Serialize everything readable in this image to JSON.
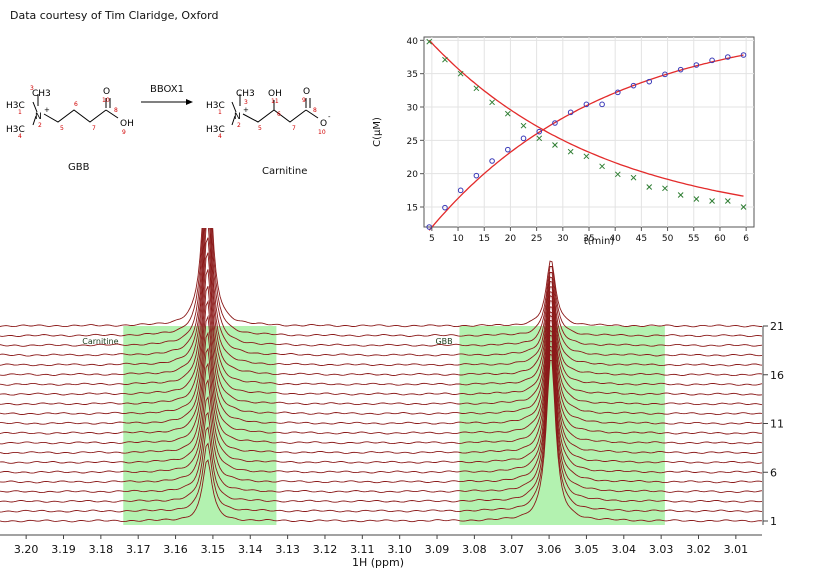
{
  "credit": "Data courtesy of Tim Claridge, Oxford",
  "reaction": {
    "arrow_label": "BBOX1",
    "reactant": {
      "name": "GBB",
      "h3c_top": "H3C",
      "h3c_bottom": "H3C",
      "ch3": "CH3",
      "n": "N",
      "n_charge": "+",
      "o": "O",
      "oh": "OH",
      "numbers": [
        "1",
        "2",
        "3",
        "4",
        "5",
        "6",
        "7",
        "8",
        "9",
        "10"
      ]
    },
    "product": {
      "name": "Carnitine",
      "h3c_top": "H3C",
      "h3c_bottom": "H3C",
      "ch3": "CH3",
      "n": "N",
      "n_charge": "+",
      "oh": "OH",
      "o": "O",
      "o_minus": "O",
      "o_charge": "-",
      "numbers": [
        "1",
        "2",
        "3",
        "4",
        "5",
        "6",
        "7",
        "8",
        "9",
        "10",
        "11"
      ]
    }
  },
  "chart_data": [
    {
      "type": "scatter",
      "title": "",
      "xlabel": "t(min)",
      "ylabel": "C(μM)",
      "xticks": [
        "5",
        "10",
        "15",
        "20",
        "25",
        "30",
        "35",
        "40",
        "45",
        "50",
        "55",
        "60",
        "6"
      ],
      "xlim": [
        3.5,
        66.5
      ],
      "ylim": [
        12,
        40.5
      ],
      "yticks": [
        15,
        20,
        25,
        30,
        35,
        40
      ],
      "grid": true,
      "fit_color": "#e32b2b",
      "series": [
        {
          "marker": "x",
          "color": "#2e7d32",
          "x": [
            4.5,
            7.5,
            10.5,
            13.5,
            16.5,
            19.5,
            22.5,
            25.5,
            28.5,
            31.5,
            34.5,
            37.5,
            40.5,
            43.5,
            46.5,
            49.5,
            52.5,
            55.5,
            58.5,
            61.5,
            64.5
          ],
          "y": [
            39.8,
            37.1,
            35.0,
            32.8,
            30.7,
            29.0,
            27.2,
            25.3,
            24.3,
            23.3,
            22.6,
            21.1,
            19.9,
            19.4,
            18.0,
            17.8,
            16.8,
            16.2,
            15.9,
            15.9,
            15.0
          ],
          "fit": {
            "a": 12.0,
            "b": 28.0,
            "k": 0.03
          }
        },
        {
          "marker": "o",
          "color": "#3a3ab8",
          "x": [
            4.5,
            7.5,
            10.5,
            13.5,
            16.5,
            19.5,
            22.5,
            25.5,
            28.5,
            31.5,
            34.5,
            37.5,
            40.5,
            43.5,
            46.5,
            49.5,
            52.5,
            55.5,
            58.5,
            61.5,
            64.5
          ],
          "y": [
            12.0,
            14.9,
            17.5,
            19.7,
            21.9,
            23.6,
            25.3,
            26.3,
            27.6,
            29.2,
            30.4,
            30.4,
            32.2,
            33.2,
            33.8,
            34.9,
            35.6,
            36.3,
            37.0,
            37.5,
            37.8
          ],
          "fit": {
            "a": 43.0,
            "b": -31.5,
            "k": 0.03
          }
        }
      ]
    },
    {
      "type": "line",
      "title": "",
      "xlabel": "1H (ppm)",
      "xticks": [
        "3.20",
        "3.19",
        "3.18",
        "3.17",
        "3.16",
        "3.15",
        "3.14",
        "3.13",
        "3.12",
        "3.11",
        "3.10",
        "3.09",
        "3.08",
        "3.07",
        "3.06",
        "3.05",
        "3.04",
        "3.03",
        "3.02",
        "3.01"
      ],
      "xlim": [
        3.207,
        3.003
      ],
      "y_ticks": [
        "1",
        "6",
        "11",
        "16",
        "21"
      ],
      "n_traces": 21,
      "trace_color": "#8b1a1a",
      "regions": [
        {
          "label": "Carnitine",
          "from": 3.174,
          "to": 3.133,
          "color": "#b3f2b0"
        },
        {
          "label": "GBB",
          "from": 3.084,
          "to": 3.029,
          "color": "#b3f2b0"
        }
      ],
      "peaks": [
        {
          "label": "Carnitine",
          "ppm": 3.1515,
          "height_first": 0.33,
          "height_last": 0.99
        },
        {
          "label": "GBB",
          "ppm": 3.0595,
          "height_first": 0.88,
          "height_last": 0.35
        }
      ]
    }
  ]
}
